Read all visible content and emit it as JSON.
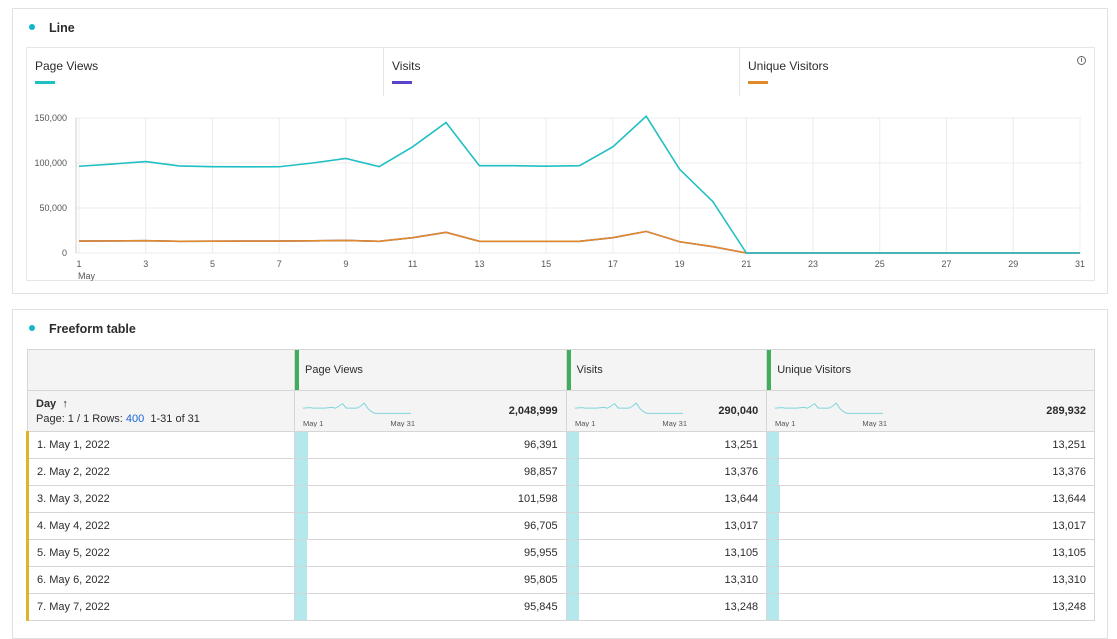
{
  "line_panel": {
    "title": "Line",
    "legend": [
      {
        "label": "Page Views",
        "color": "#1fbfc4"
      },
      {
        "label": "Visits",
        "color": "#5945c9"
      },
      {
        "label": "Unique Visitors",
        "color": "#e08a2a"
      }
    ],
    "info_icon": "info-icon"
  },
  "chart_data": {
    "type": "line",
    "x": [
      1,
      2,
      3,
      4,
      5,
      6,
      7,
      8,
      9,
      10,
      11,
      12,
      13,
      14,
      15,
      16,
      17,
      18,
      19,
      20,
      21,
      22,
      23,
      24,
      25,
      26,
      27,
      28,
      29,
      30,
      31
    ],
    "x_ticks": [
      "1",
      "3",
      "5",
      "7",
      "9",
      "11",
      "13",
      "15",
      "17",
      "19",
      "21",
      "23",
      "25",
      "27",
      "29",
      "31"
    ],
    "x_sublabel": "May",
    "y_ticks": [
      "0",
      "50,000",
      "100,000",
      "150,000"
    ],
    "ylim": [
      0,
      150000
    ],
    "grid": true,
    "series": [
      {
        "name": "Page Views",
        "color": "#1fbfc4",
        "values": [
          96391,
          98857,
          101598,
          96705,
          95955,
          95805,
          95845,
          100000,
          105000,
          96000,
          118000,
          145000,
          97000,
          97000,
          96500,
          97000,
          118000,
          152000,
          93000,
          57000,
          0,
          0,
          0,
          0,
          0,
          0,
          0,
          0,
          0,
          0,
          0
        ]
      },
      {
        "name": "Visits",
        "color": "#5945c9",
        "values": [
          13251,
          13376,
          13644,
          13017,
          13105,
          13310,
          13248,
          13500,
          14000,
          13000,
          17000,
          23000,
          13000,
          13000,
          13000,
          13000,
          17000,
          24000,
          12500,
          7000,
          0,
          0,
          0,
          0,
          0,
          0,
          0,
          0,
          0,
          0,
          0
        ]
      },
      {
        "name": "Unique Visitors",
        "color": "#e08a2a",
        "values": [
          13251,
          13376,
          13644,
          13017,
          13105,
          13310,
          13248,
          13500,
          14000,
          13000,
          17000,
          23000,
          13000,
          13000,
          13000,
          13000,
          17000,
          24000,
          12500,
          7000,
          0,
          0,
          0,
          0,
          0,
          0,
          0,
          0,
          0,
          0,
          0
        ]
      }
    ]
  },
  "table_panel": {
    "title": "Freeform table",
    "dimension": "Day",
    "sort_icon": "↑",
    "page_info": "Page: 1 / 1 Rows:",
    "rows_value": "400",
    "range": "1-31 of 31",
    "spark_start": "May 1",
    "spark_end": "May 31",
    "metrics": [
      {
        "label": "Page Views",
        "total": "2,048,999"
      },
      {
        "label": "Visits",
        "total": "290,040"
      },
      {
        "label": "Unique Visitors",
        "total": "289,932"
      }
    ],
    "rows": [
      {
        "label": "1.  May 1, 2022",
        "v": [
          "96,391",
          "13,251",
          "13,251"
        ]
      },
      {
        "label": "2.  May 2, 2022",
        "v": [
          "98,857",
          "13,376",
          "13,376"
        ]
      },
      {
        "label": "3.  May 3, 2022",
        "v": [
          "101,598",
          "13,644",
          "13,644"
        ]
      },
      {
        "label": "4.  May 4, 2022",
        "v": [
          "96,705",
          "13,017",
          "13,017"
        ]
      },
      {
        "label": "5.  May 5, 2022",
        "v": [
          "95,955",
          "13,105",
          "13,105"
        ]
      },
      {
        "label": "6.  May 6, 2022",
        "v": [
          "95,805",
          "13,310",
          "13,310"
        ]
      },
      {
        "label": "7.  May 7, 2022",
        "v": [
          "95,845",
          "13,248",
          "13,248"
        ]
      }
    ]
  }
}
